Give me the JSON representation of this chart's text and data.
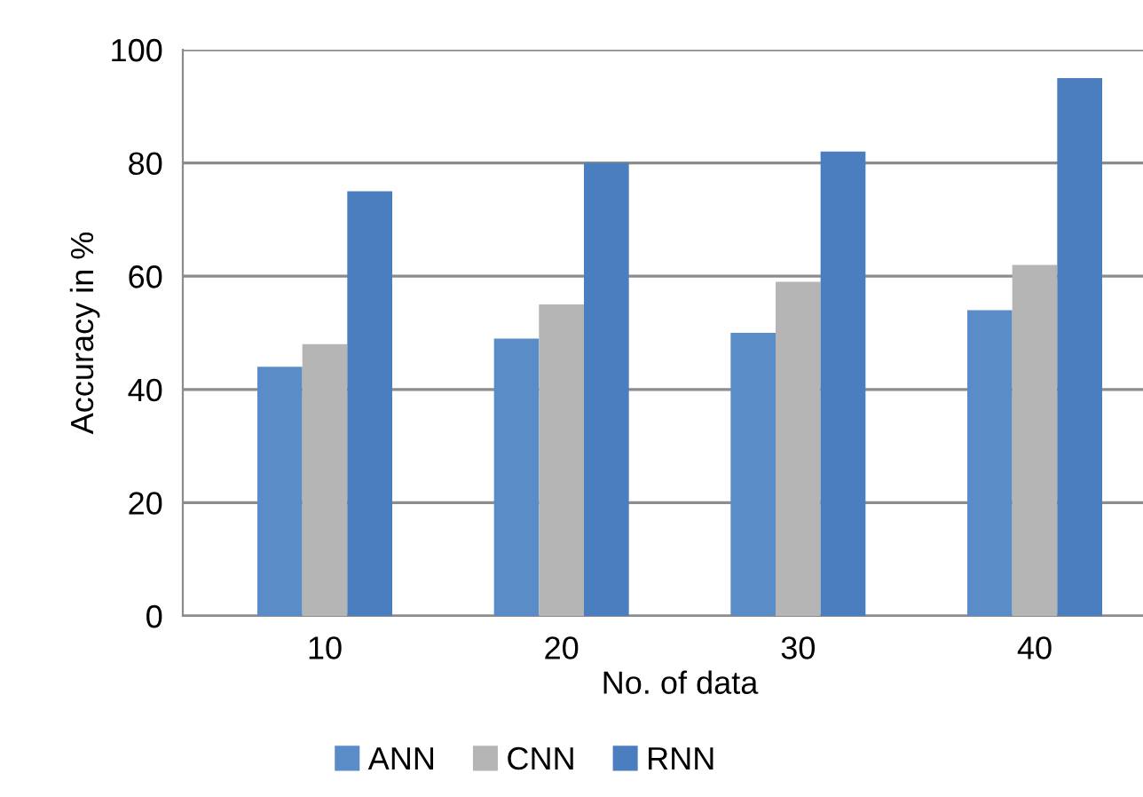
{
  "chart_data": {
    "type": "bar",
    "xlabel": "No. of data",
    "ylabel": "Accuracy in %",
    "categories": [
      "10",
      "20",
      "30",
      "40"
    ],
    "series": [
      {
        "name": "ANN",
        "color": "#5a8cc8",
        "values": [
          44,
          49,
          50,
          54
        ]
      },
      {
        "name": "CNN",
        "color": "#b4b5b4",
        "values": [
          48,
          55,
          59,
          62
        ]
      },
      {
        "name": "RNN",
        "color": "#4a7ebf",
        "values": [
          75,
          80,
          82,
          95
        ]
      }
    ],
    "ylim": [
      0,
      100
    ],
    "yticks": [
      0,
      20,
      40,
      60,
      80,
      100
    ],
    "grid": "y",
    "legend": "bottom"
  }
}
